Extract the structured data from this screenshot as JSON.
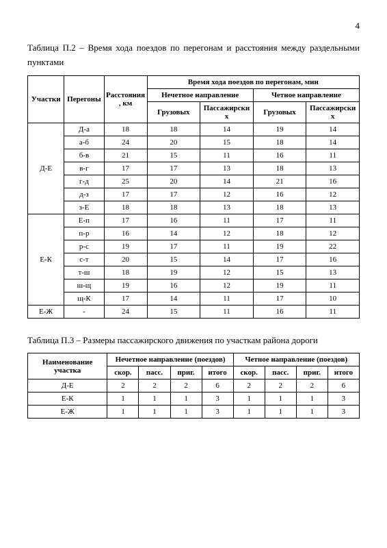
{
  "page_number": "4",
  "table2": {
    "caption": "Таблица П.2 – Время хода поездов по перегонам и расстояния между раздельными пунктами",
    "head": {
      "sections": "Участки",
      "segments": "Перегоны",
      "distance": "Расстояния, км",
      "times_top": "Время хода поездов по перегонам, мин",
      "odd": "Нечетное направление",
      "even": "Четное направление",
      "freight": "Грузовых",
      "passenger": "Пассажирских"
    },
    "groups": [
      {
        "section": "Д-Е",
        "rows": [
          {
            "seg": "Д-а",
            "dist": "18",
            "of": "18",
            "op": "14",
            "ef": "19",
            "ep": "14"
          },
          {
            "seg": "а-б",
            "dist": "24",
            "of": "20",
            "op": "15",
            "ef": "18",
            "ep": "14"
          },
          {
            "seg": "б-в",
            "dist": "21",
            "of": "15",
            "op": "11",
            "ef": "16",
            "ep": "11"
          },
          {
            "seg": "в-г",
            "dist": "17",
            "of": "17",
            "op": "13",
            "ef": "18",
            "ep": "13"
          },
          {
            "seg": "г-д",
            "dist": "25",
            "of": "20",
            "op": "14",
            "ef": "21",
            "ep": "16"
          },
          {
            "seg": "д-з",
            "dist": "17",
            "of": "17",
            "op": "12",
            "ef": "16",
            "ep": "12"
          },
          {
            "seg": "з-Е",
            "dist": "18",
            "of": "18",
            "op": "13",
            "ef": "18",
            "ep": "13"
          }
        ]
      },
      {
        "section": "Е-К",
        "rows": [
          {
            "seg": "Е-п",
            "dist": "17",
            "of": "16",
            "op": "11",
            "ef": "17",
            "ep": "11"
          },
          {
            "seg": "п-р",
            "dist": "16",
            "of": "14",
            "op": "12",
            "ef": "18",
            "ep": "12"
          },
          {
            "seg": "р-с",
            "dist": "19",
            "of": "17",
            "op": "11",
            "ef": "19",
            "ep": "22"
          },
          {
            "seg": "с-т",
            "dist": "20",
            "of": "15",
            "op": "14",
            "ef": "17",
            "ep": "16"
          },
          {
            "seg": "т-ш",
            "dist": "18",
            "of": "19",
            "op": "12",
            "ef": "15",
            "ep": "13"
          },
          {
            "seg": "ш-щ",
            "dist": "19",
            "of": "16",
            "op": "12",
            "ef": "19",
            "ep": "11"
          },
          {
            "seg": "щ-К",
            "dist": "17",
            "of": "14",
            "op": "11",
            "ef": "17",
            "ep": "10"
          }
        ]
      },
      {
        "section": "Е-Ж",
        "rows": [
          {
            "seg": "-",
            "dist": "24",
            "of": "15",
            "op": "11",
            "ef": "16",
            "ep": "11"
          }
        ]
      }
    ]
  },
  "table3": {
    "caption": "Таблица П.3 – Размеры пассажирского движения по участкам района дороги",
    "head": {
      "name": "Наименование участка",
      "odd": "Нечетное направление (поездов)",
      "even": "Четное направление (поездов)",
      "fast": "скор.",
      "pass": "пасс.",
      "sub": "приг.",
      "total": "итого"
    },
    "rows": [
      {
        "name": "Д-Е",
        "of": "2",
        "op": "2",
        "os": "2",
        "ot": "6",
        "ef": "2",
        "ep": "2",
        "es": "2",
        "et": "6"
      },
      {
        "name": "Е-К",
        "of": "1",
        "op": "1",
        "os": "1",
        "ot": "3",
        "ef": "1",
        "ep": "1",
        "es": "1",
        "et": "3"
      },
      {
        "name": "Е-Ж",
        "of": "1",
        "op": "1",
        "os": "1",
        "ot": "3",
        "ef": "1",
        "ep": "1",
        "es": "1",
        "et": "3"
      }
    ]
  }
}
